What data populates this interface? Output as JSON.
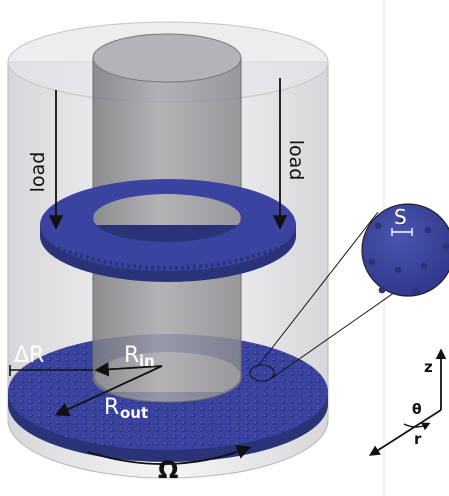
{
  "labels": {
    "load_left": "load",
    "load_right": "load",
    "delta_r": "ΔR",
    "r_in_base": "R",
    "r_in_sub": "in",
    "r_out_base": "R",
    "r_out_sub": "out",
    "omega": "Ω",
    "spacing": "S",
    "axis_z": "z",
    "axis_theta": "θ",
    "axis_r": "r"
  },
  "colors": {
    "ring": "#3a44a0",
    "ring_dark": "#2a3278",
    "outer_cylinder": "#d8d8dc",
    "inner_cylinder": "#9a9a9e",
    "arrow": "#111111"
  },
  "icons": {
    "zoom_inset": "magnifier-circle",
    "axes": "cylindrical-axes-triad"
  }
}
